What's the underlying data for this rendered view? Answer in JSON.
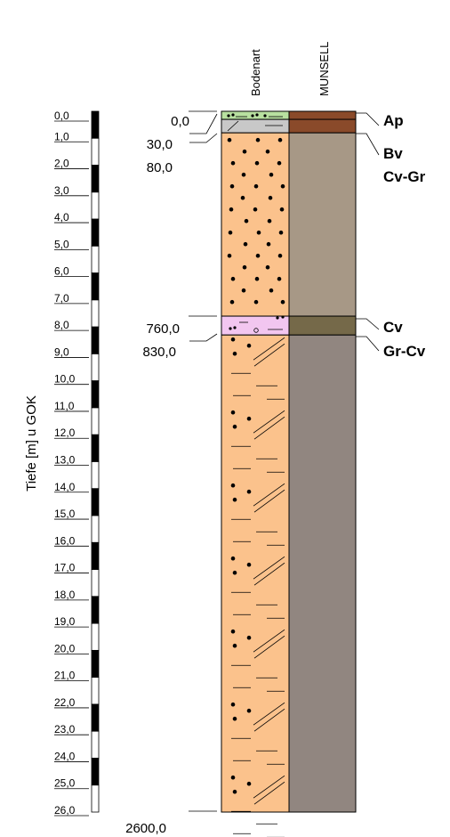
{
  "axis_label": "Tiefe [m] u GOK",
  "column_headers": {
    "soil": "Bodenart",
    "munsell": "MUNSELL"
  },
  "depth_scale": {
    "ticks": [
      "0,0",
      "1,0",
      "2,0",
      "3,0",
      "4,0",
      "5,0",
      "6,0",
      "7,0",
      "8,0",
      "9,0",
      "10,0",
      "11,0",
      "12,0",
      "13,0",
      "14,0",
      "15,0",
      "16,0",
      "17,0",
      "18,0",
      "19,0",
      "20,0",
      "21,0",
      "22,0",
      "23,0",
      "24,0",
      "25,0",
      "26,0"
    ]
  },
  "boundaries": [
    {
      "label": "0,0",
      "depth_cm": 0
    },
    {
      "label": "30,0",
      "depth_cm": 30
    },
    {
      "label": "80,0",
      "depth_cm": 80
    },
    {
      "label": "760,0",
      "depth_cm": 760
    },
    {
      "label": "830,0",
      "depth_cm": 830
    },
    {
      "label": "2600,0",
      "depth_cm": 2600
    }
  ],
  "layers": [
    {
      "name": "Ap",
      "top_cm": 0,
      "bottom_cm": 30,
      "soil_color": "#b8e0a0",
      "munsell_color": "#8a4a2a",
      "pattern": "humus"
    },
    {
      "name": "Bv",
      "top_cm": 30,
      "bottom_cm": 80,
      "soil_color": "#c8c8c8",
      "munsell_color": "#8a4a2a",
      "pattern": "diag"
    },
    {
      "name": "Cv-Gr",
      "top_cm": 80,
      "bottom_cm": 760,
      "soil_color": "#fbc28c",
      "munsell_color": "#a79886",
      "pattern": "gravel"
    },
    {
      "name": "Cv",
      "top_cm": 760,
      "bottom_cm": 830,
      "soil_color": "#f2c6f0",
      "munsell_color": "#756949",
      "pattern": "mixed"
    },
    {
      "name": "Gr-Cv",
      "top_cm": 830,
      "bottom_cm": 2600,
      "soil_color": "#fbc28c",
      "munsell_color": "#918680",
      "pattern": "gravel-silt"
    }
  ]
}
